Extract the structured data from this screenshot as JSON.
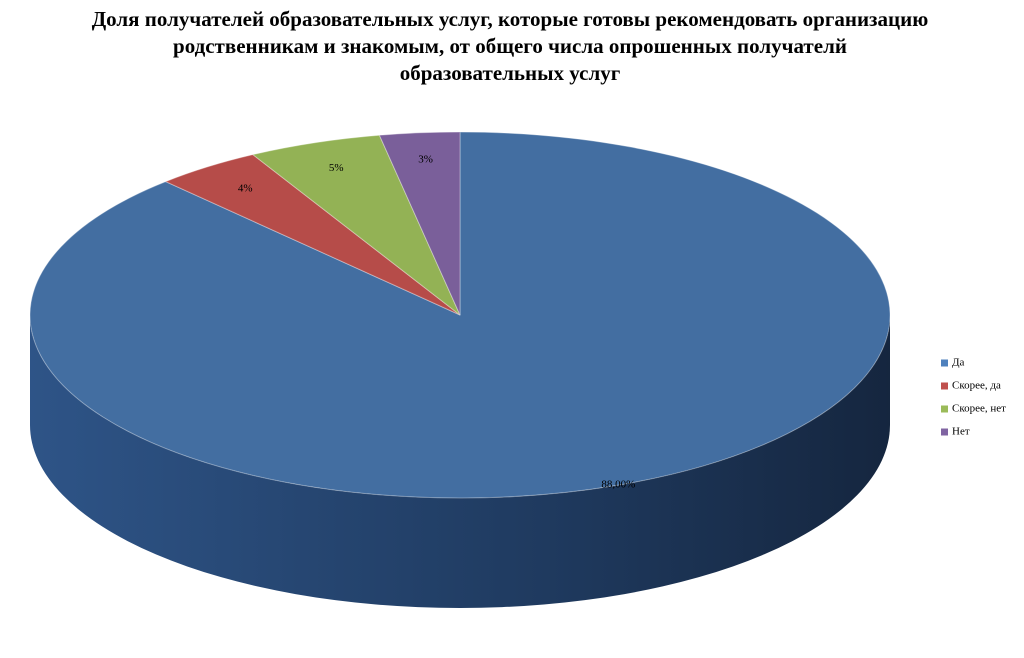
{
  "chart_data": {
    "type": "pie3d",
    "title": "Доля получателей образовательных услуг, которые готовы рекомендовать организацию родственникам и знакомым, от общего числа опрошенных получателй образовательных услуг",
    "categories": [
      "Да",
      "Скорее, да",
      "Скорее, нет",
      "Нет"
    ],
    "values": [
      88,
      4,
      5,
      3
    ],
    "value_labels": [
      "88,00%",
      "4%",
      "5%",
      "3%"
    ],
    "colors": [
      "#4f81bd",
      "#c0504d",
      "#9bbb59",
      "#8064a2"
    ],
    "legend": "right"
  }
}
